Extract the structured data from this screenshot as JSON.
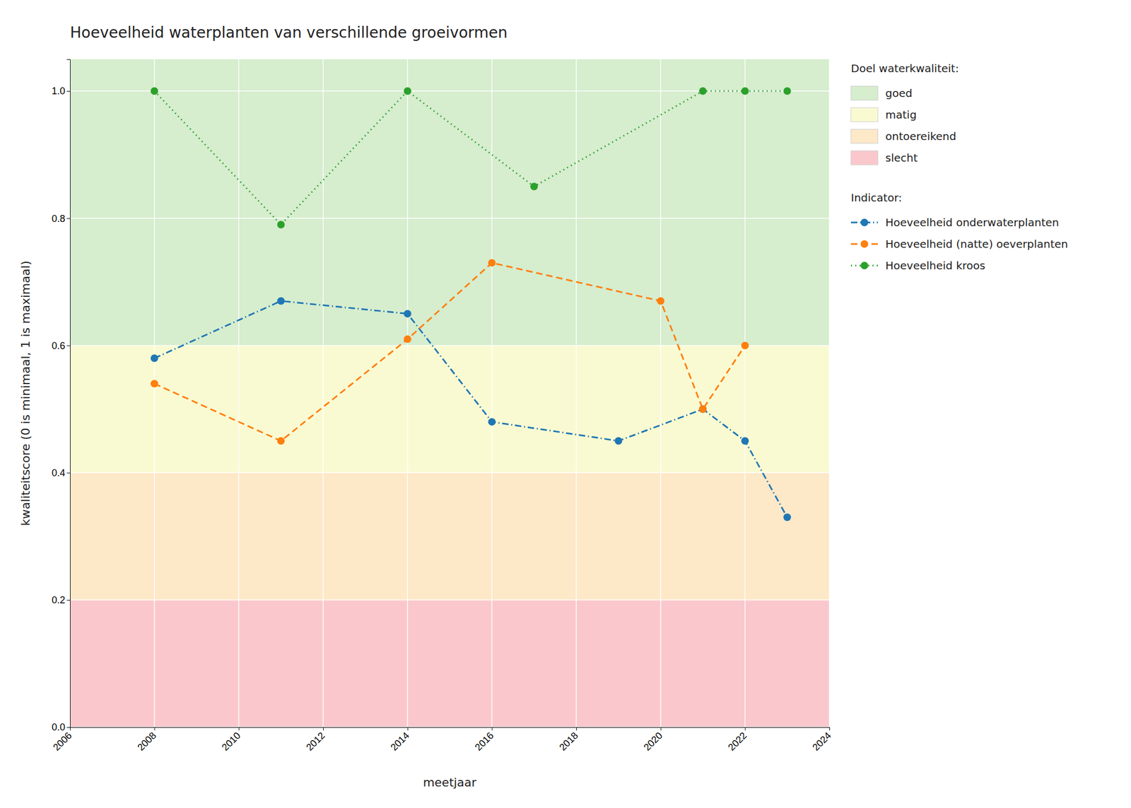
{
  "chart_data": {
    "type": "line",
    "title": "Hoeveelheid waterplanten van verschillende groeivormen",
    "x_label": "meetjaar",
    "y_label": "kwaliteitscore (0 is minimaal, 1 is maximaal)",
    "xlim": [
      2006,
      2024
    ],
    "ylim": [
      0.0,
      1.05
    ],
    "xticks": [
      2006,
      2008,
      2010,
      2012,
      2014,
      2016,
      2018,
      2020,
      2022,
      2024
    ],
    "yticks": [
      {
        "value": 0.0,
        "label": "0.0"
      },
      {
        "value": 0.2,
        "label": "0.2"
      },
      {
        "value": 0.4,
        "label": "0.4"
      },
      {
        "value": 0.6,
        "label": "0.6"
      },
      {
        "value": 0.8,
        "label": "0.8"
      },
      {
        "value": 1.0,
        "label": "1.0"
      }
    ],
    "grid": true,
    "legend": "right",
    "legend_title_bands": "Doel waterkwaliteit:",
    "legend_title_series": "Indicator:",
    "bands": [
      {
        "name": "goed",
        "color": "#d6edce",
        "ymin": 0.6,
        "ymax": 1.05
      },
      {
        "name": "matig",
        "color": "#fafad2",
        "ymin": 0.4,
        "ymax": 0.6
      },
      {
        "name": "ontoereikend",
        "color": "#fde8c8",
        "ymin": 0.2,
        "ymax": 0.4
      },
      {
        "name": "slecht",
        "color": "#fac8cc",
        "ymin": 0.0,
        "ymax": 0.2
      }
    ],
    "series": [
      {
        "name": "Hoeveelheid onderwaterplanten",
        "line_style": "dashdot",
        "marker": "circle",
        "x": [
          2008,
          2011,
          2014,
          2016,
          2019,
          2021,
          2022,
          2023
        ],
        "values": [
          0.58,
          0.67,
          0.65,
          0.48,
          0.45,
          0.5,
          0.45,
          0.33
        ]
      },
      {
        "name": "Hoeveelheid (natte) oeverplanten",
        "line_style": "dashed",
        "marker": "circle",
        "x": [
          2008,
          2011,
          2014,
          2016,
          2020,
          2021,
          2022
        ],
        "values": [
          0.54,
          0.45,
          0.61,
          0.73,
          0.67,
          0.5,
          0.6
        ]
      },
      {
        "name": "Hoeveelheid kroos",
        "line_style": "dotted",
        "marker": "circle",
        "x": [
          2008,
          2011,
          2014,
          2017,
          2021,
          2022,
          2023
        ],
        "values": [
          1.0,
          0.79,
          1.0,
          0.85,
          1.0,
          1.0,
          1.0
        ]
      }
    ]
  }
}
